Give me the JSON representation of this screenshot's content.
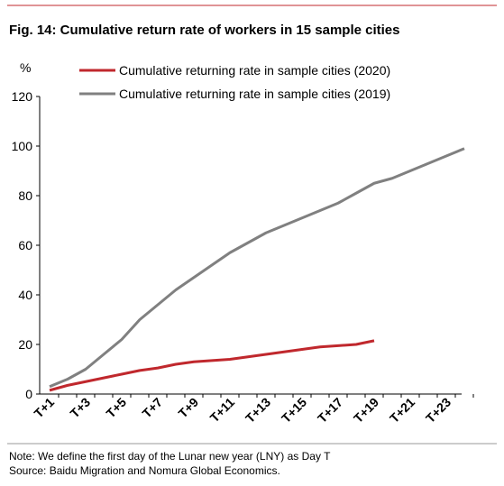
{
  "chart_data": {
    "type": "line",
    "title": "Fig. 14: Cumulative return rate of workers in 15 sample cities",
    "ylabel": "%",
    "categories": [
      "T+1",
      null,
      "T+3",
      null,
      "T+5",
      null,
      "T+7",
      null,
      "T+9",
      null,
      "T+11",
      null,
      "T+13",
      null,
      "T+15",
      null,
      "T+17",
      null,
      "T+19",
      null,
      "T+21",
      null,
      "T+23",
      null
    ],
    "series": [
      {
        "name": "Cumulative returning rate in sample cities (2020)",
        "color": "#c0282d",
        "values": [
          1.5,
          3.5,
          5,
          6.5,
          8,
          9.5,
          10.5,
          12,
          13,
          13.5,
          14,
          15,
          16,
          17,
          18,
          19,
          19.5,
          20,
          21.5,
          null,
          null,
          null,
          null,
          null
        ]
      },
      {
        "name": "Cumulative returning rate in sample cities (2019)",
        "color": "#808080",
        "values": [
          3,
          6,
          10,
          16,
          22,
          30,
          36,
          42,
          47,
          52,
          57,
          61,
          65,
          68,
          71,
          74,
          77,
          81,
          85,
          87,
          90,
          93,
          96,
          99
        ]
      }
    ],
    "ylim": [
      0,
      120
    ],
    "yticks": [
      0,
      20,
      40,
      60,
      80,
      100,
      120
    ],
    "legend": "top",
    "note": "Note: We define the first day of the Lunar new year (LNY) as Day T",
    "source": "Source: Baidu Migration and Nomura Global Economics."
  }
}
